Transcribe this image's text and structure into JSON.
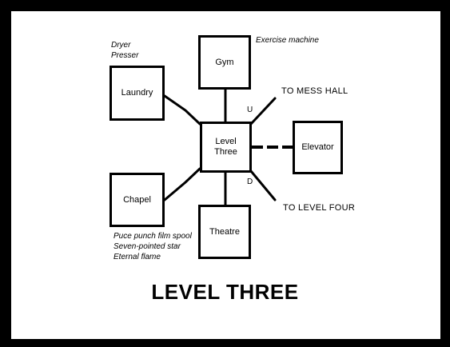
{
  "diagram": {
    "title": "LEVEL THREE",
    "rooms": {
      "gym": "Gym",
      "laundry": "Laundry",
      "level_three": "Level\nThree",
      "elevator": "Elevator",
      "chapel": "Chapel",
      "theatre": "Theatre"
    },
    "notes": {
      "gym_items": "Exercise machine",
      "laundry_items": [
        "Dryer",
        "Presser"
      ],
      "chapel_items": [
        "Puce punch film spool",
        "Seven-pointed star",
        "Eternal flame"
      ]
    },
    "exits": {
      "mess_hall": "TO MESS HALL",
      "level_four": "TO LEVEL FOUR"
    },
    "directions": {
      "up": "U",
      "down": "D"
    }
  }
}
